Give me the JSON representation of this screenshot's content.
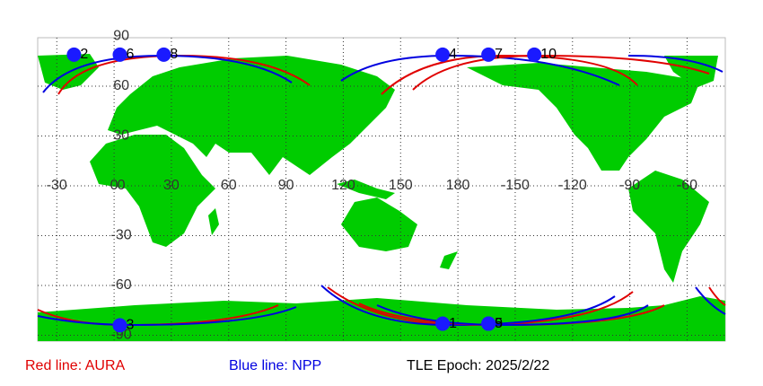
{
  "map": {
    "lon_ticks": [
      -30,
      0,
      30,
      60,
      90,
      120,
      150,
      180,
      -150,
      -120,
      -90,
      -60
    ],
    "lat_ticks": [
      90,
      60,
      30,
      0,
      -30,
      -60,
      -90
    ],
    "points": [
      {
        "label": "2",
        "lon": -21,
        "lat": 79
      },
      {
        "label": "6",
        "lon": 3,
        "lat": 79
      },
      {
        "label": "8",
        "lon": 26,
        "lat": 79
      },
      {
        "label": "4",
        "lon": 172,
        "lat": 79
      },
      {
        "label": "7",
        "lon": -164,
        "lat": 79
      },
      {
        "label": "10",
        "lon": -140,
        "lat": 79
      },
      {
        "label": "3",
        "lon": 3,
        "lat": -84
      },
      {
        "label": "1",
        "lon": 172,
        "lat": -83
      },
      {
        "label": "5",
        "lon": -164,
        "lat": -83
      },
      {
        "label": "9",
        "lon": -164,
        "lat": -83
      }
    ],
    "legend": [
      {
        "label": "Red line: AURA",
        "color": "#e00000"
      },
      {
        "label": "Blue line: NPP",
        "color": "#0000e0"
      }
    ],
    "epoch": "TLE Epoch: 2025/2/22"
  }
}
